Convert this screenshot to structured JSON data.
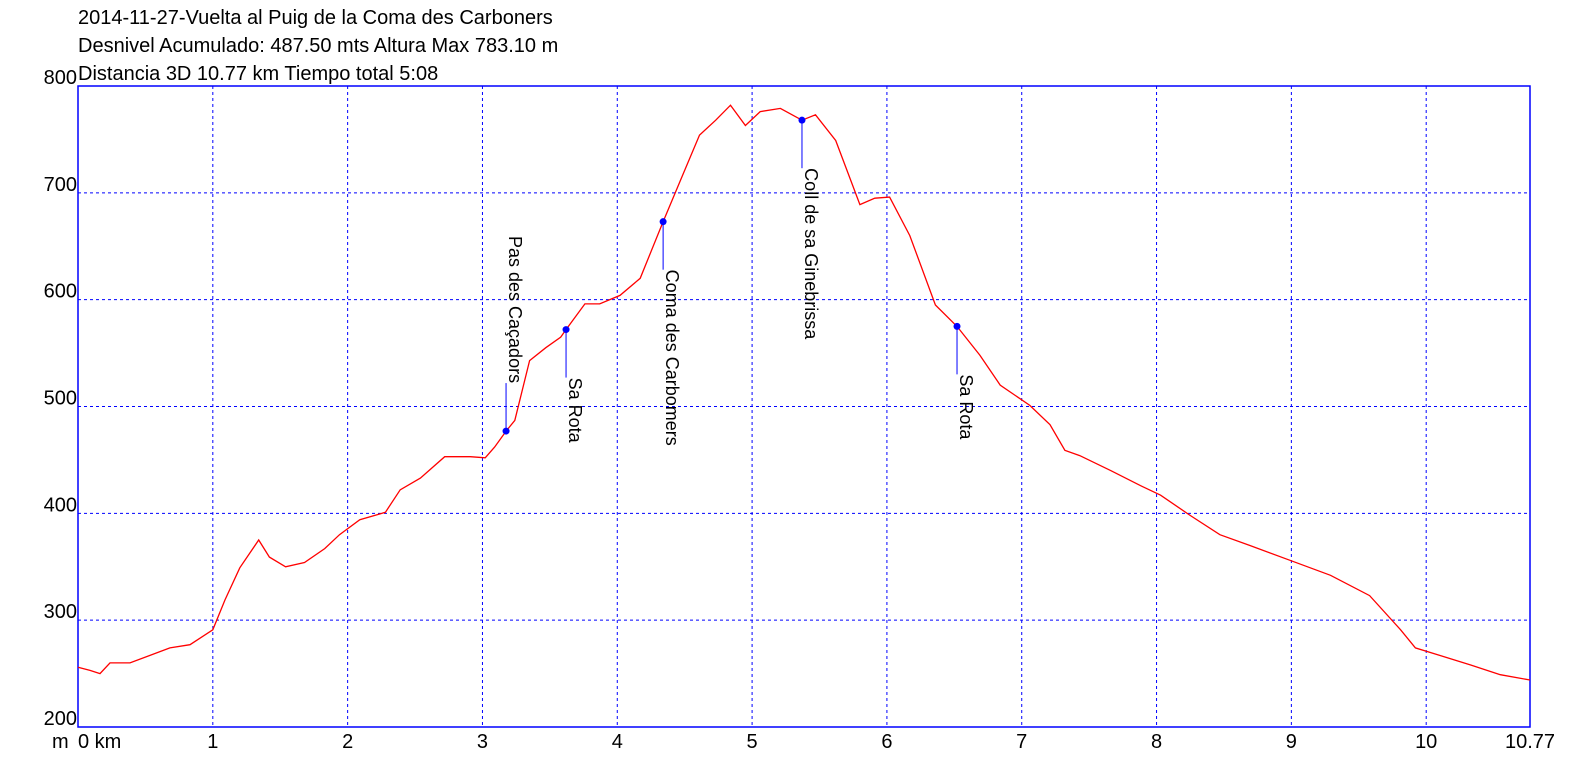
{
  "chart_data": {
    "type": "line",
    "title_lines": [
      "2014-11-27-Vuelta al Puig de la Coma des Carboners",
      "Desnivel Acumulado: 487.50 mts  Altura Max 783.10 m",
      "Distancia 3D 10.77 km  Tiempo total 5:08"
    ],
    "y_label": "m",
    "xlim": [
      0,
      10.77
    ],
    "ylim": [
      200,
      800
    ],
    "xticks": [
      {
        "value": 0,
        "label": "0 km"
      },
      1,
      2,
      3,
      4,
      5,
      6,
      7,
      8,
      9,
      10,
      10.77
    ],
    "yticks": [
      200,
      300,
      400,
      500,
      600,
      700,
      800
    ],
    "grid": true,
    "grid_color": "#0000ff",
    "frame_color": "#0000ff",
    "series": [
      {
        "color": "#ff0000",
        "x": [
          0,
          0.089,
          0.163,
          0.237,
          0.386,
          0.534,
          0.682,
          0.831,
          1.0,
          1.09,
          1.2,
          1.34,
          1.42,
          1.54,
          1.68,
          1.83,
          1.94,
          2.09,
          2.28,
          2.39,
          2.54,
          2.72,
          2.91,
          3.02,
          3.09,
          3.175,
          3.24,
          3.35,
          3.47,
          3.58,
          3.62,
          3.76,
          3.87,
          4.02,
          4.17,
          4.34,
          4.47,
          4.61,
          4.73,
          4.84,
          4.95,
          5.06,
          5.21,
          5.37,
          5.47,
          5.62,
          5.8,
          5.91,
          6.02,
          6.17,
          6.36,
          6.52,
          6.69,
          6.84,
          7.06,
          7.21,
          7.32,
          7.43,
          7.66,
          7.88,
          8.03,
          8.25,
          8.47,
          8.69,
          8.99,
          9.29,
          9.58,
          9.81,
          9.92,
          10.1,
          10.33,
          10.55,
          10.77
        ],
        "values": [
          256,
          253,
          250,
          260,
          260,
          267,
          274,
          277,
          291,
          319,
          349,
          375,
          359,
          350,
          354,
          367,
          380,
          394,
          401,
          422,
          433,
          453,
          453,
          452,
          462,
          477,
          487,
          543,
          555,
          565,
          572,
          596,
          596,
          604,
          620,
          673,
          712,
          754,
          768,
          782,
          763,
          776,
          779,
          768,
          773,
          749,
          689,
          695,
          696,
          660,
          595,
          575,
          548,
          520,
          501,
          483,
          459,
          454,
          440,
          426,
          417,
          398,
          380,
          370,
          356,
          342,
          323,
          291,
          274,
          267,
          258,
          249,
          244
        ]
      }
    ],
    "annotations": [
      {
        "label": "Pas des Caçadors",
        "x": 3.175,
        "y": 477,
        "label_side": "above"
      },
      {
        "label": "Sa Rota",
        "x": 3.62,
        "y": 572,
        "label_side": "below"
      },
      {
        "label": "Coma des Carbomers",
        "x": 4.34,
        "y": 673,
        "label_side": "below"
      },
      {
        "label": "Coll de sa Ginebrissa",
        "x": 5.37,
        "y": 768,
        "label_side": "below"
      },
      {
        "label": "Sa Rota",
        "x": 6.52,
        "y": 575,
        "label_side": "below"
      }
    ],
    "annotation_color": "#0000ff"
  }
}
